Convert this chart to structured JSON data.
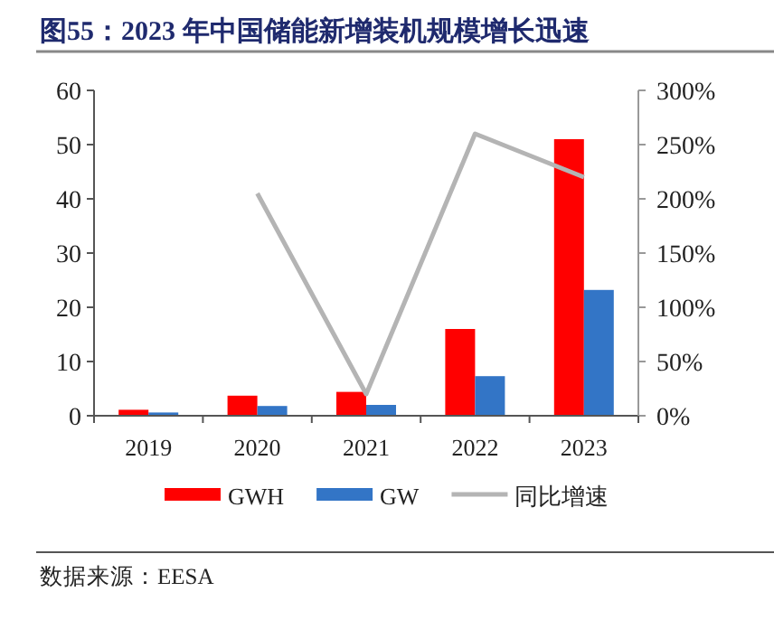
{
  "chart_data": {
    "type": "bar",
    "title": "图55：2023 年中国储能新增装机规模增长迅速",
    "categories": [
      "2019",
      "2020",
      "2021",
      "2022",
      "2023"
    ],
    "series": [
      {
        "name": "GWH",
        "color": "#ff0000",
        "values": [
          1.1,
          3.7,
          4.4,
          16,
          51
        ]
      },
      {
        "name": "GW",
        "color": "#3375c6",
        "values": [
          0.6,
          1.8,
          2.0,
          7.3,
          23.2
        ]
      },
      {
        "name": "同比增速",
        "type": "line",
        "axis": "y2",
        "color": "#b4b4b4",
        "values": [
          null,
          205,
          20,
          260,
          220
        ]
      }
    ],
    "ylim": [
      0,
      60
    ],
    "yticks": [
      0,
      10,
      20,
      30,
      40,
      50,
      60
    ],
    "y2lim": [
      0,
      300
    ],
    "y2ticks": [
      {
        "value": 0,
        "label": "0%"
      },
      {
        "value": 50,
        "label": "50%"
      },
      {
        "value": 100,
        "label": "100%"
      },
      {
        "value": 150,
        "label": "150%"
      },
      {
        "value": 200,
        "label": "200%"
      },
      {
        "value": 250,
        "label": "250%"
      },
      {
        "value": 300,
        "label": "300%"
      }
    ],
    "grid": false,
    "legend": "bottom",
    "annotations": [
      "数据来源：EESA"
    ]
  }
}
